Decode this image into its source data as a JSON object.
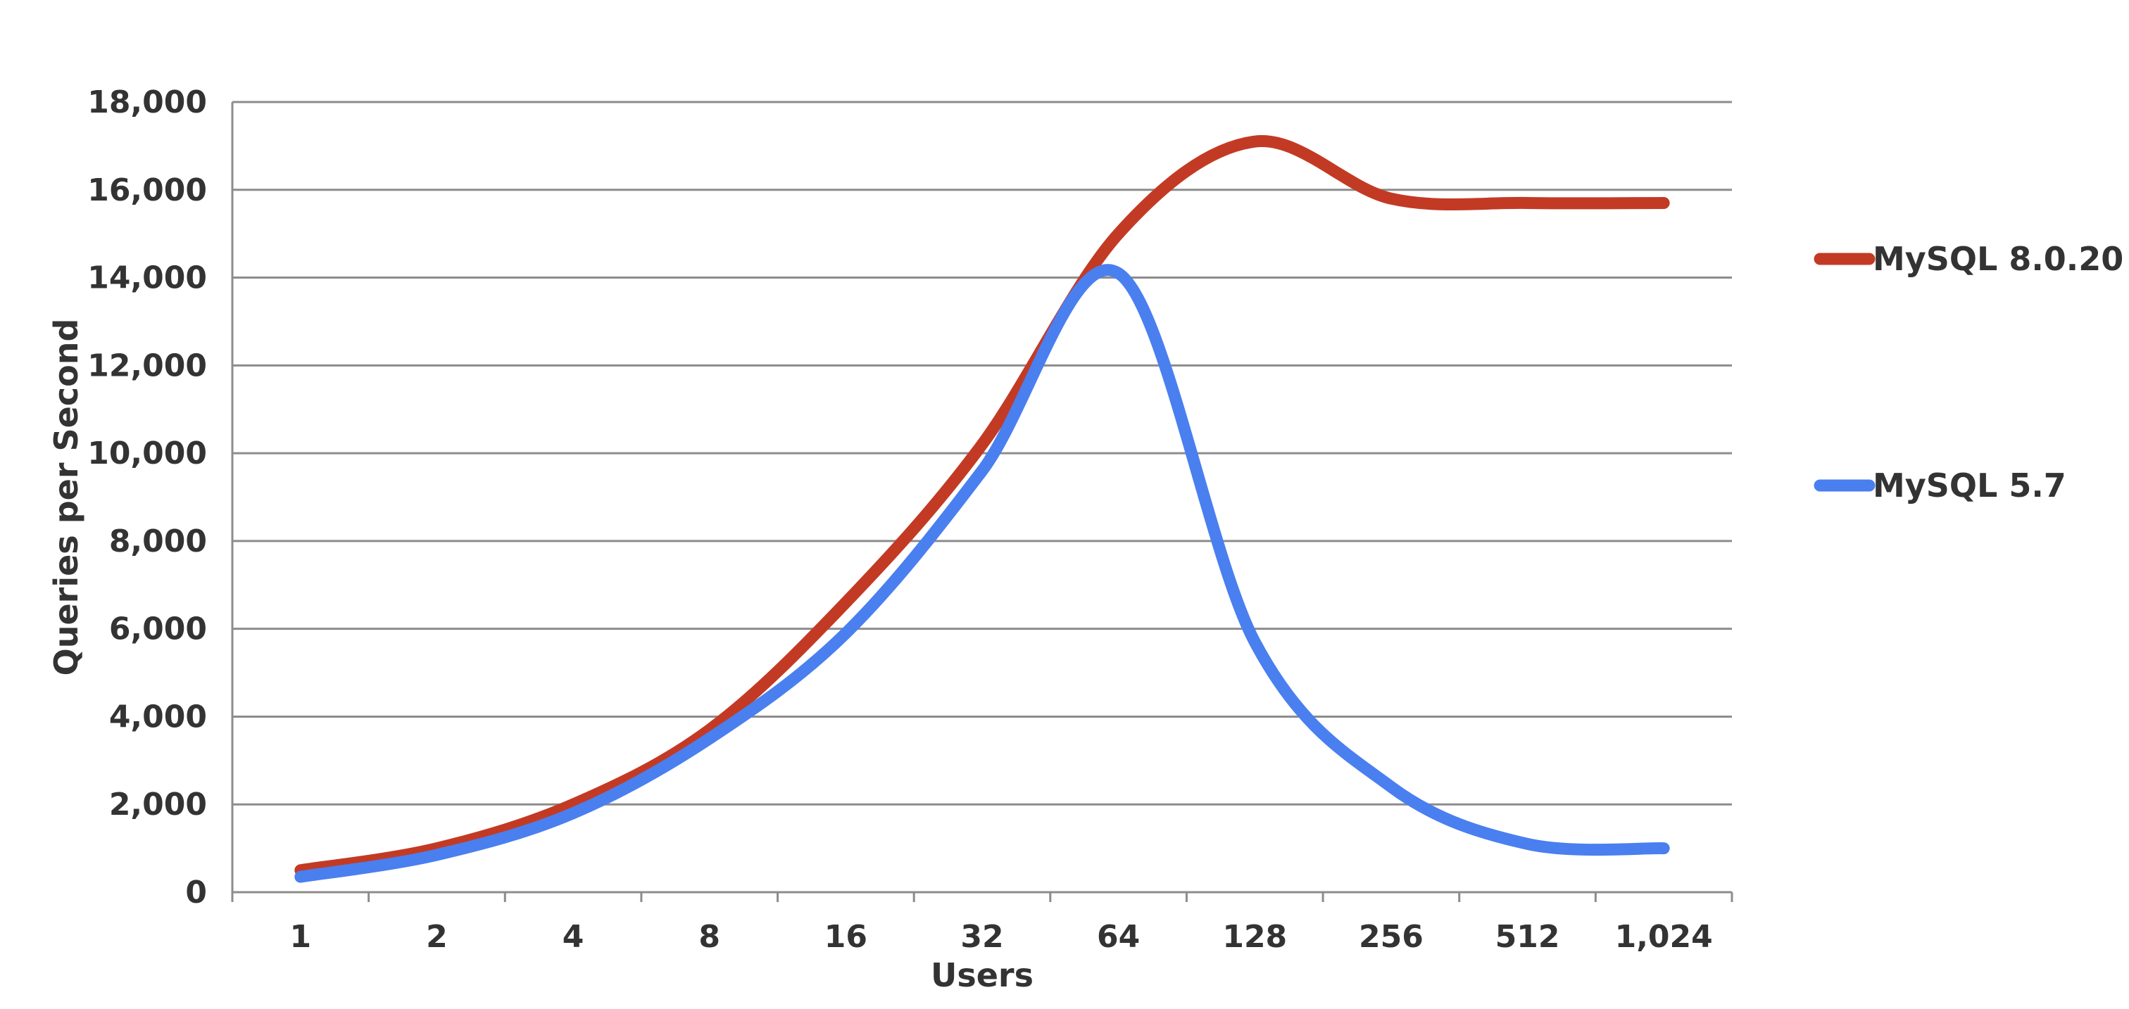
{
  "chart_data": {
    "type": "line",
    "xlabel": "Users",
    "ylabel": "Queries per Second",
    "categories": [
      "1",
      "2",
      "4",
      "8",
      "16",
      "32",
      "64",
      "128",
      "256",
      "512",
      "1,024"
    ],
    "ylim": [
      0,
      18000
    ],
    "yticks": [
      0,
      2000,
      4000,
      6000,
      8000,
      10000,
      12000,
      14000,
      16000,
      18000
    ],
    "ytick_labels": [
      "0",
      "2,000",
      "4,000",
      "6,000",
      "8,000",
      "10,000",
      "12,000",
      "14,000",
      "16,000",
      "18,000"
    ],
    "grid": true,
    "legend_position": "right",
    "series": [
      {
        "name": "MySQL 8.0.20",
        "color": "#c33a24",
        "values": [
          500,
          1000,
          2000,
          3700,
          6600,
          10200,
          15000,
          17100,
          15800,
          15700,
          15700
        ]
      },
      {
        "name": "MySQL 5.7",
        "color": "#4a7fef",
        "values": [
          350,
          850,
          1800,
          3500,
          5900,
          9600,
          14100,
          5700,
          2400,
          1100,
          1000
        ]
      }
    ]
  }
}
